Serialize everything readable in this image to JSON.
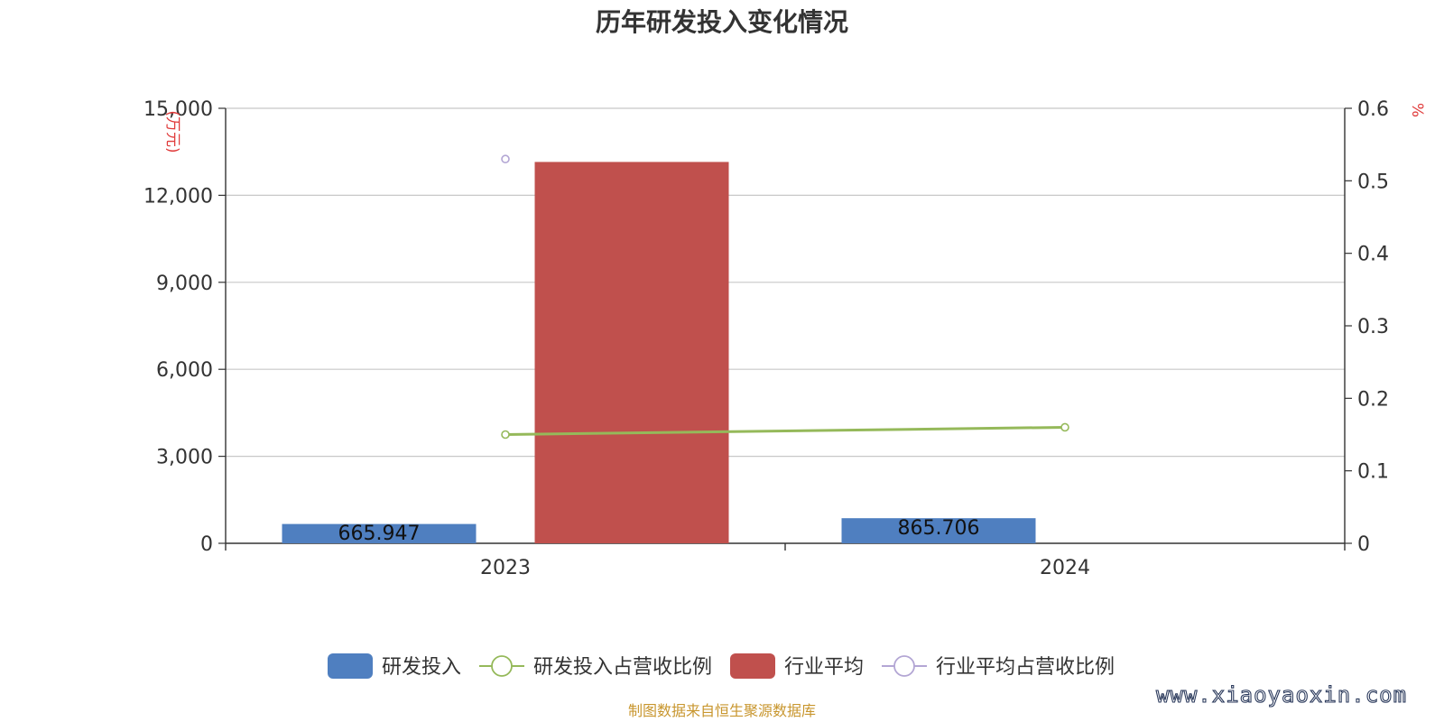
{
  "title": "历年研发投入变化情况",
  "source_note": "制图数据来自恒生聚源数据库",
  "watermark": "www.xiaoyaoxin.com",
  "chart_data": {
    "type": "bar",
    "categories": [
      "2023",
      "2024"
    ],
    "y_left": {
      "unit": "(万元)",
      "ticks": [
        "0",
        "3,000",
        "6,000",
        "9,000",
        "12,000",
        "15,000"
      ],
      "range": [
        0,
        15000
      ]
    },
    "y_right": {
      "unit": "%",
      "ticks": [
        "0",
        "0.1",
        "0.2",
        "0.3",
        "0.4",
        "0.5",
        "0.6"
      ],
      "range": [
        0,
        0.6
      ]
    },
    "grid": true,
    "legend_position": "bottom-center",
    "series": [
      {
        "name": "研发投入",
        "type": "bar",
        "axis": "left",
        "color": "#4f7fc0",
        "values": [
          665.947,
          865.706
        ],
        "labels": [
          "665.947",
          "865.706"
        ]
      },
      {
        "name": "研发投入占营收比例",
        "type": "line",
        "axis": "right",
        "color": "#95b95a",
        "values": [
          0.15,
          0.16
        ]
      },
      {
        "name": "行业平均",
        "type": "bar",
        "axis": "left",
        "color": "#c0504d",
        "values": [
          13150,
          null
        ]
      },
      {
        "name": "行业平均占营收比例",
        "type": "line",
        "axis": "right",
        "color": "#b3a6d4",
        "values": [
          0.53,
          null
        ]
      }
    ]
  }
}
